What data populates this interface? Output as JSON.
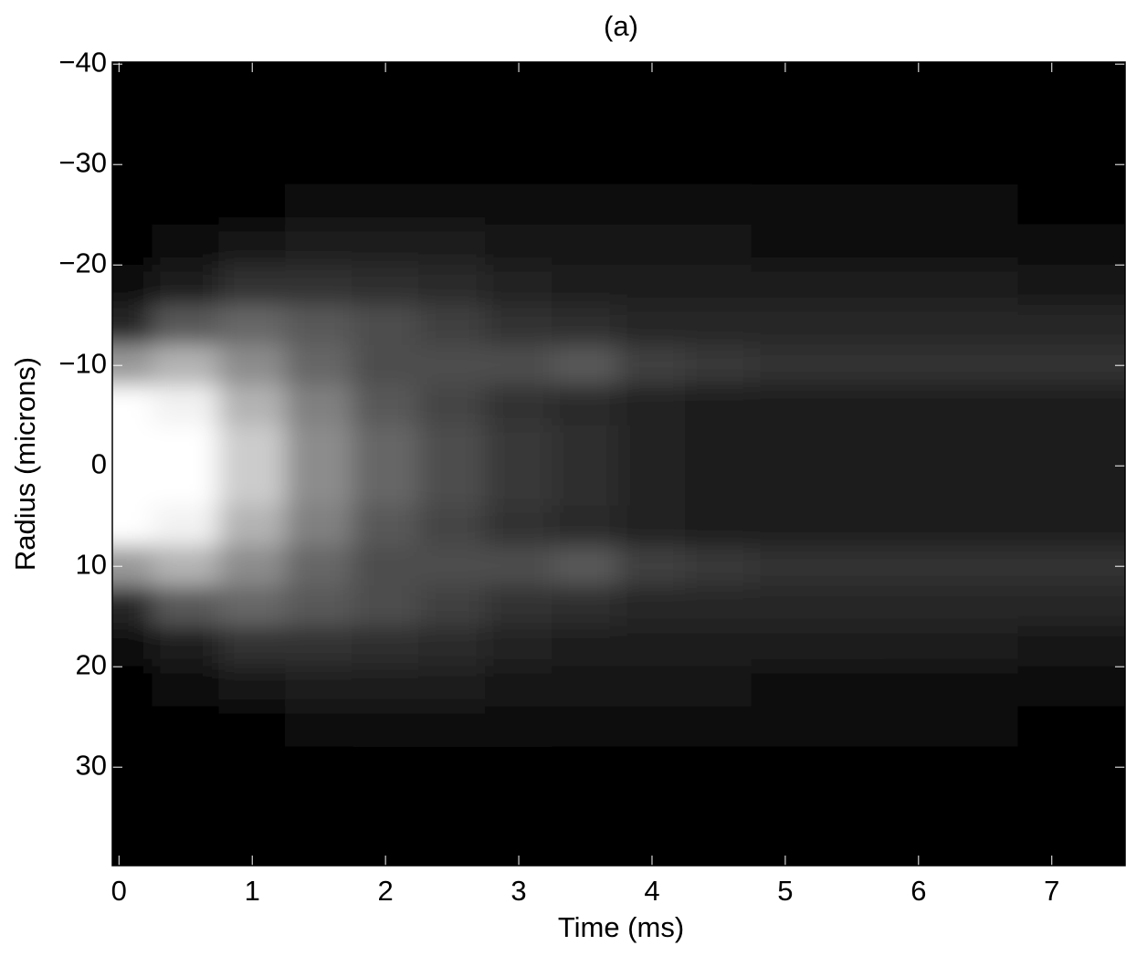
{
  "chart_data": {
    "type": "heatmap",
    "title": "(a)",
    "x_label": "Time (ms)",
    "y_label": "Radius (microns)",
    "colormap": "gray",
    "y_reversed": true,
    "x": [
      0,
      0.5,
      1,
      1.5,
      2,
      2.5,
      3,
      3.5,
      4,
      4.5,
      5,
      5.5,
      6,
      6.5,
      7,
      7.5
    ],
    "y": [
      -38,
      -34,
      -30,
      -26,
      -22,
      -18,
      -14,
      -10,
      -6,
      -2,
      2,
      6,
      10,
      14,
      18,
      22,
      26,
      30,
      34,
      38
    ],
    "values": [
      [
        0,
        0,
        0,
        0,
        0,
        0,
        0,
        0,
        0,
        0,
        0,
        0,
        0,
        0,
        0,
        0
      ],
      [
        0,
        0,
        0,
        0,
        0,
        0,
        0,
        0,
        0,
        0,
        0,
        0,
        0,
        0,
        0,
        0
      ],
      [
        0,
        0,
        0,
        0.01,
        0.02,
        0.02,
        0.02,
        0.02,
        0.02,
        0.02,
        0.02,
        0.01,
        0.01,
        0.01,
        0.01,
        0.01
      ],
      [
        0,
        0,
        0.02,
        0.04,
        0.05,
        0.05,
        0.05,
        0.04,
        0.04,
        0.04,
        0.03,
        0.03,
        0.03,
        0.03,
        0.02,
        0.02
      ],
      [
        0,
        0.03,
        0.08,
        0.1,
        0.1,
        0.1,
        0.08,
        0.08,
        0.07,
        0.07,
        0.06,
        0.06,
        0.05,
        0.05,
        0.04,
        0.04
      ],
      [
        0.03,
        0.12,
        0.2,
        0.2,
        0.18,
        0.16,
        0.14,
        0.12,
        0.1,
        0.1,
        0.1,
        0.1,
        0.1,
        0.1,
        0.08,
        0.08
      ],
      [
        0.15,
        0.35,
        0.4,
        0.35,
        0.3,
        0.25,
        0.2,
        0.18,
        0.15,
        0.15,
        0.15,
        0.15,
        0.15,
        0.15,
        0.15,
        0.15
      ],
      [
        0.6,
        0.7,
        0.55,
        0.4,
        0.3,
        0.3,
        0.3,
        0.35,
        0.25,
        0.22,
        0.2,
        0.2,
        0.2,
        0.2,
        0.2,
        0.2
      ],
      [
        1,
        0.95,
        0.7,
        0.5,
        0.35,
        0.27,
        0.2,
        0.16,
        0.13,
        0.12,
        0.12,
        0.12,
        0.12,
        0.12,
        0.12,
        0.12
      ],
      [
        1,
        1,
        0.8,
        0.55,
        0.4,
        0.3,
        0.22,
        0.18,
        0.14,
        0.12,
        0.1,
        0.1,
        0.1,
        0.1,
        0.1,
        0.1
      ],
      [
        1,
        1,
        0.8,
        0.55,
        0.4,
        0.3,
        0.22,
        0.18,
        0.14,
        0.12,
        0.1,
        0.1,
        0.1,
        0.1,
        0.1,
        0.1
      ],
      [
        1,
        0.95,
        0.7,
        0.5,
        0.35,
        0.27,
        0.2,
        0.16,
        0.13,
        0.12,
        0.12,
        0.12,
        0.12,
        0.12,
        0.12,
        0.12
      ],
      [
        0.6,
        0.7,
        0.55,
        0.4,
        0.3,
        0.3,
        0.3,
        0.35,
        0.25,
        0.22,
        0.2,
        0.2,
        0.2,
        0.2,
        0.2,
        0.2
      ],
      [
        0.15,
        0.35,
        0.4,
        0.35,
        0.3,
        0.25,
        0.2,
        0.18,
        0.15,
        0.15,
        0.15,
        0.15,
        0.15,
        0.15,
        0.15,
        0.15
      ],
      [
        0.03,
        0.12,
        0.2,
        0.2,
        0.18,
        0.16,
        0.14,
        0.12,
        0.1,
        0.1,
        0.1,
        0.1,
        0.1,
        0.1,
        0.08,
        0.08
      ],
      [
        0,
        0.03,
        0.08,
        0.1,
        0.1,
        0.1,
        0.08,
        0.08,
        0.07,
        0.07,
        0.06,
        0.06,
        0.05,
        0.05,
        0.04,
        0.04
      ],
      [
        0,
        0,
        0.02,
        0.04,
        0.05,
        0.05,
        0.05,
        0.04,
        0.04,
        0.04,
        0.03,
        0.03,
        0.03,
        0.03,
        0.02,
        0.02
      ],
      [
        0,
        0,
        0,
        0.01,
        0.02,
        0.02,
        0.02,
        0.02,
        0.02,
        0.02,
        0.02,
        0.01,
        0.01,
        0.01,
        0.01,
        0.01
      ],
      [
        0,
        0,
        0,
        0,
        0,
        0,
        0,
        0,
        0,
        0,
        0,
        0,
        0,
        0,
        0,
        0
      ],
      [
        0,
        0,
        0,
        0,
        0,
        0,
        0,
        0,
        0,
        0,
        0,
        0,
        0,
        0,
        0,
        0
      ]
    ],
    "xlim": [
      -0.05,
      7.55
    ],
    "xticks": [
      0,
      1,
      2,
      3,
      4,
      5,
      6,
      7
    ],
    "ylim": [
      -40.2,
      39.8
    ],
    "yticks": [
      {
        "value": -40,
        "label": "−40"
      },
      {
        "value": -30,
        "label": "−30"
      },
      {
        "value": -20,
        "label": "−20"
      },
      {
        "value": -10,
        "label": "−10"
      },
      0,
      10,
      20,
      30
    ]
  }
}
